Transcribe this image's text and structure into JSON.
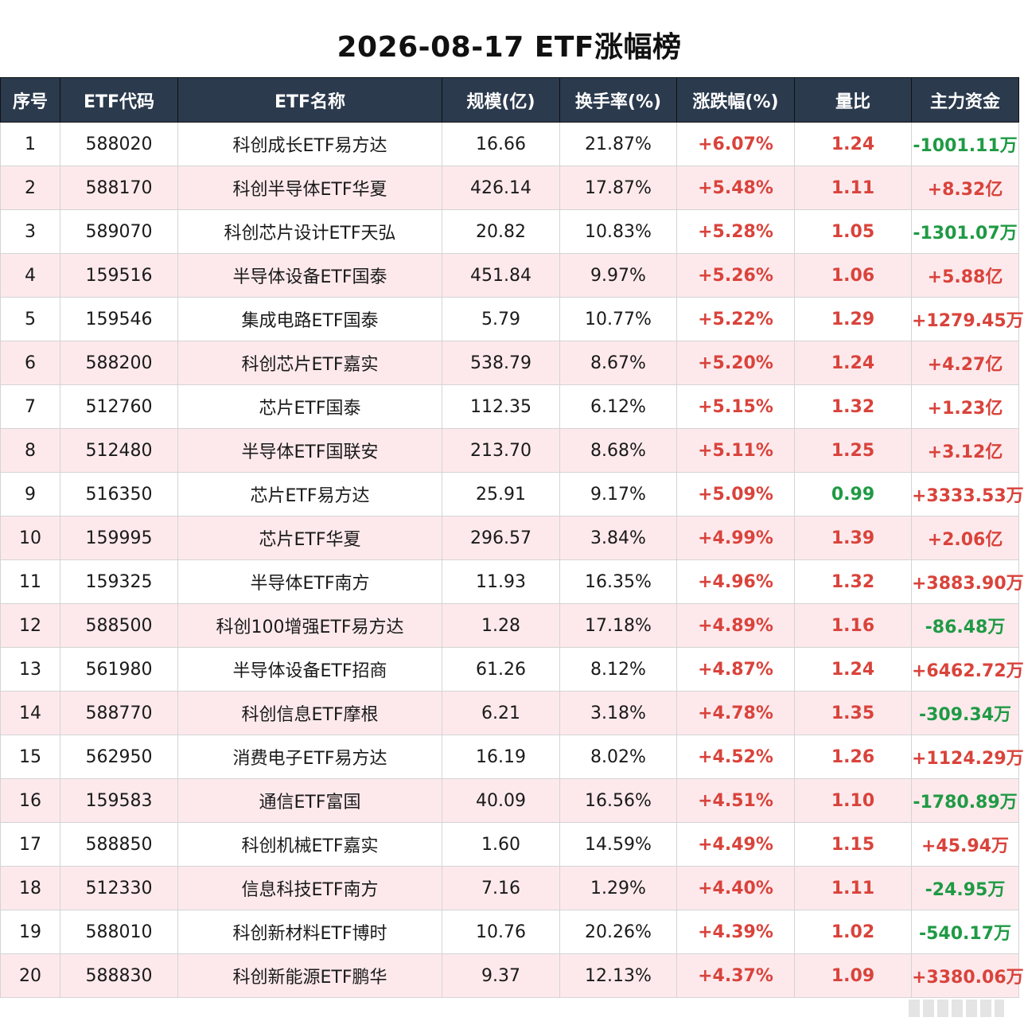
{
  "title": "2026-08-17 ETF涨幅榜",
  "colors": {
    "header_bg": "#2b3a4d",
    "up": "#d9433b",
    "down": "#1f9a44",
    "alt_row": "#fde9ec"
  },
  "headers": [
    "序号",
    "ETF代码",
    "ETF名称",
    "规模(亿)",
    "换手率(%)",
    "涨跌幅(%)",
    "量比",
    "主力资金"
  ],
  "rows": [
    {
      "rank": "1",
      "code": "588020",
      "name": "科创成长ETF易方达",
      "scale": "16.66",
      "turnover": "21.87%",
      "change": "+6.07%",
      "ratio": "1.24",
      "flow": "-1001.11万"
    },
    {
      "rank": "2",
      "code": "588170",
      "name": "科创半导体ETF华夏",
      "scale": "426.14",
      "turnover": "17.87%",
      "change": "+5.48%",
      "ratio": "1.11",
      "flow": "+8.32亿"
    },
    {
      "rank": "3",
      "code": "589070",
      "name": "科创芯片设计ETF天弘",
      "scale": "20.82",
      "turnover": "10.83%",
      "change": "+5.28%",
      "ratio": "1.05",
      "flow": "-1301.07万"
    },
    {
      "rank": "4",
      "code": "159516",
      "name": "半导体设备ETF国泰",
      "scale": "451.84",
      "turnover": "9.97%",
      "change": "+5.26%",
      "ratio": "1.06",
      "flow": "+5.88亿"
    },
    {
      "rank": "5",
      "code": "159546",
      "name": "集成电路ETF国泰",
      "scale": "5.79",
      "turnover": "10.77%",
      "change": "+5.22%",
      "ratio": "1.29",
      "flow": "+1279.45万"
    },
    {
      "rank": "6",
      "code": "588200",
      "name": "科创芯片ETF嘉实",
      "scale": "538.79",
      "turnover": "8.67%",
      "change": "+5.20%",
      "ratio": "1.24",
      "flow": "+4.27亿"
    },
    {
      "rank": "7",
      "code": "512760",
      "name": "芯片ETF国泰",
      "scale": "112.35",
      "turnover": "6.12%",
      "change": "+5.15%",
      "ratio": "1.32",
      "flow": "+1.23亿"
    },
    {
      "rank": "8",
      "code": "512480",
      "name": "半导体ETF国联安",
      "scale": "213.70",
      "turnover": "8.68%",
      "change": "+5.11%",
      "ratio": "1.25",
      "flow": "+3.12亿"
    },
    {
      "rank": "9",
      "code": "516350",
      "name": "芯片ETF易方达",
      "scale": "25.91",
      "turnover": "9.17%",
      "change": "+5.09%",
      "ratio": "0.99",
      "flow": "+3333.53万"
    },
    {
      "rank": "10",
      "code": "159995",
      "name": "芯片ETF华夏",
      "scale": "296.57",
      "turnover": "3.84%",
      "change": "+4.99%",
      "ratio": "1.39",
      "flow": "+2.06亿"
    },
    {
      "rank": "11",
      "code": "159325",
      "name": "半导体ETF南方",
      "scale": "11.93",
      "turnover": "16.35%",
      "change": "+4.96%",
      "ratio": "1.32",
      "flow": "+3883.90万"
    },
    {
      "rank": "12",
      "code": "588500",
      "name": "科创100增强ETF易方达",
      "scale": "1.28",
      "turnover": "17.18%",
      "change": "+4.89%",
      "ratio": "1.16",
      "flow": "-86.48万"
    },
    {
      "rank": "13",
      "code": "561980",
      "name": "半导体设备ETF招商",
      "scale": "61.26",
      "turnover": "8.12%",
      "change": "+4.87%",
      "ratio": "1.24",
      "flow": "+6462.72万"
    },
    {
      "rank": "14",
      "code": "588770",
      "name": "科创信息ETF摩根",
      "scale": "6.21",
      "turnover": "3.18%",
      "change": "+4.78%",
      "ratio": "1.35",
      "flow": "-309.34万"
    },
    {
      "rank": "15",
      "code": "562950",
      "name": "消费电子ETF易方达",
      "scale": "16.19",
      "turnover": "8.02%",
      "change": "+4.52%",
      "ratio": "1.26",
      "flow": "+1124.29万"
    },
    {
      "rank": "16",
      "code": "159583",
      "name": "通信ETF富国",
      "scale": "40.09",
      "turnover": "16.56%",
      "change": "+4.51%",
      "ratio": "1.10",
      "flow": "-1780.89万"
    },
    {
      "rank": "17",
      "code": "588850",
      "name": "科创机械ETF嘉实",
      "scale": "1.60",
      "turnover": "14.59%",
      "change": "+4.49%",
      "ratio": "1.15",
      "flow": "+45.94万"
    },
    {
      "rank": "18",
      "code": "512330",
      "name": "信息科技ETF南方",
      "scale": "7.16",
      "turnover": "1.29%",
      "change": "+4.40%",
      "ratio": "1.11",
      "flow": "-24.95万"
    },
    {
      "rank": "19",
      "code": "588010",
      "name": "科创新材料ETF博时",
      "scale": "10.76",
      "turnover": "20.26%",
      "change": "+4.39%",
      "ratio": "1.02",
      "flow": "-540.17万"
    },
    {
      "rank": "20",
      "code": "588830",
      "name": "科创新能源ETF鹏华",
      "scale": "9.37",
      "turnover": "12.13%",
      "change": "+4.37%",
      "ratio": "1.09",
      "flow": "+3380.06万"
    }
  ]
}
